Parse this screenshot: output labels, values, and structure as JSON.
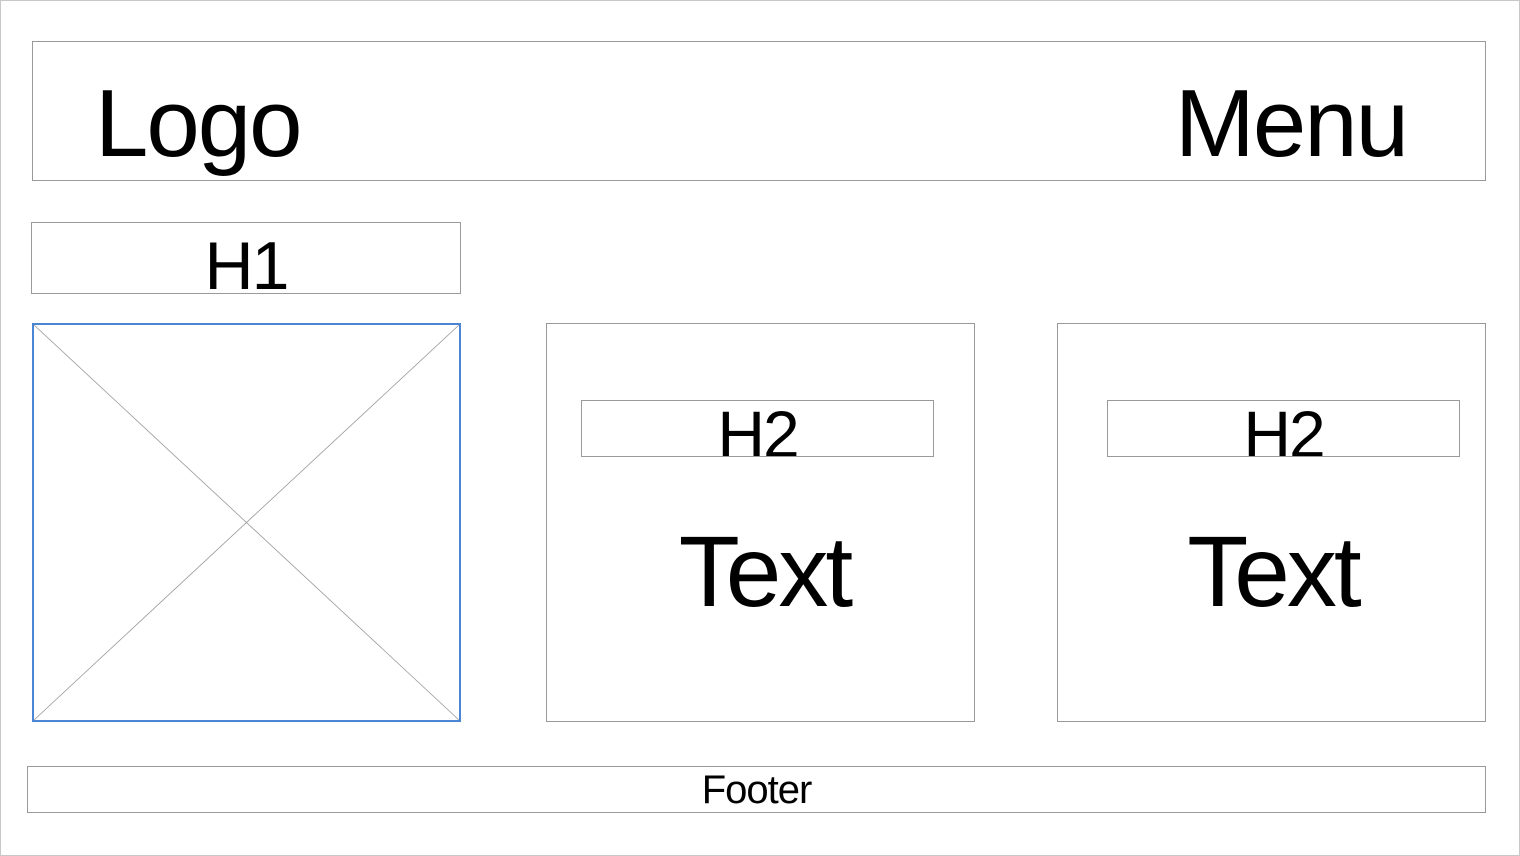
{
  "header": {
    "logo": "Logo",
    "menu": "Menu"
  },
  "hero": {
    "heading": "H1"
  },
  "image_placeholder": {
    "icon": "image-placeholder-icon",
    "border_color": "#4a86d4"
  },
  "cards": [
    {
      "heading": "H2",
      "text": "Text"
    },
    {
      "heading": "H2",
      "text": "Text"
    }
  ],
  "footer": {
    "label": "Footer"
  }
}
